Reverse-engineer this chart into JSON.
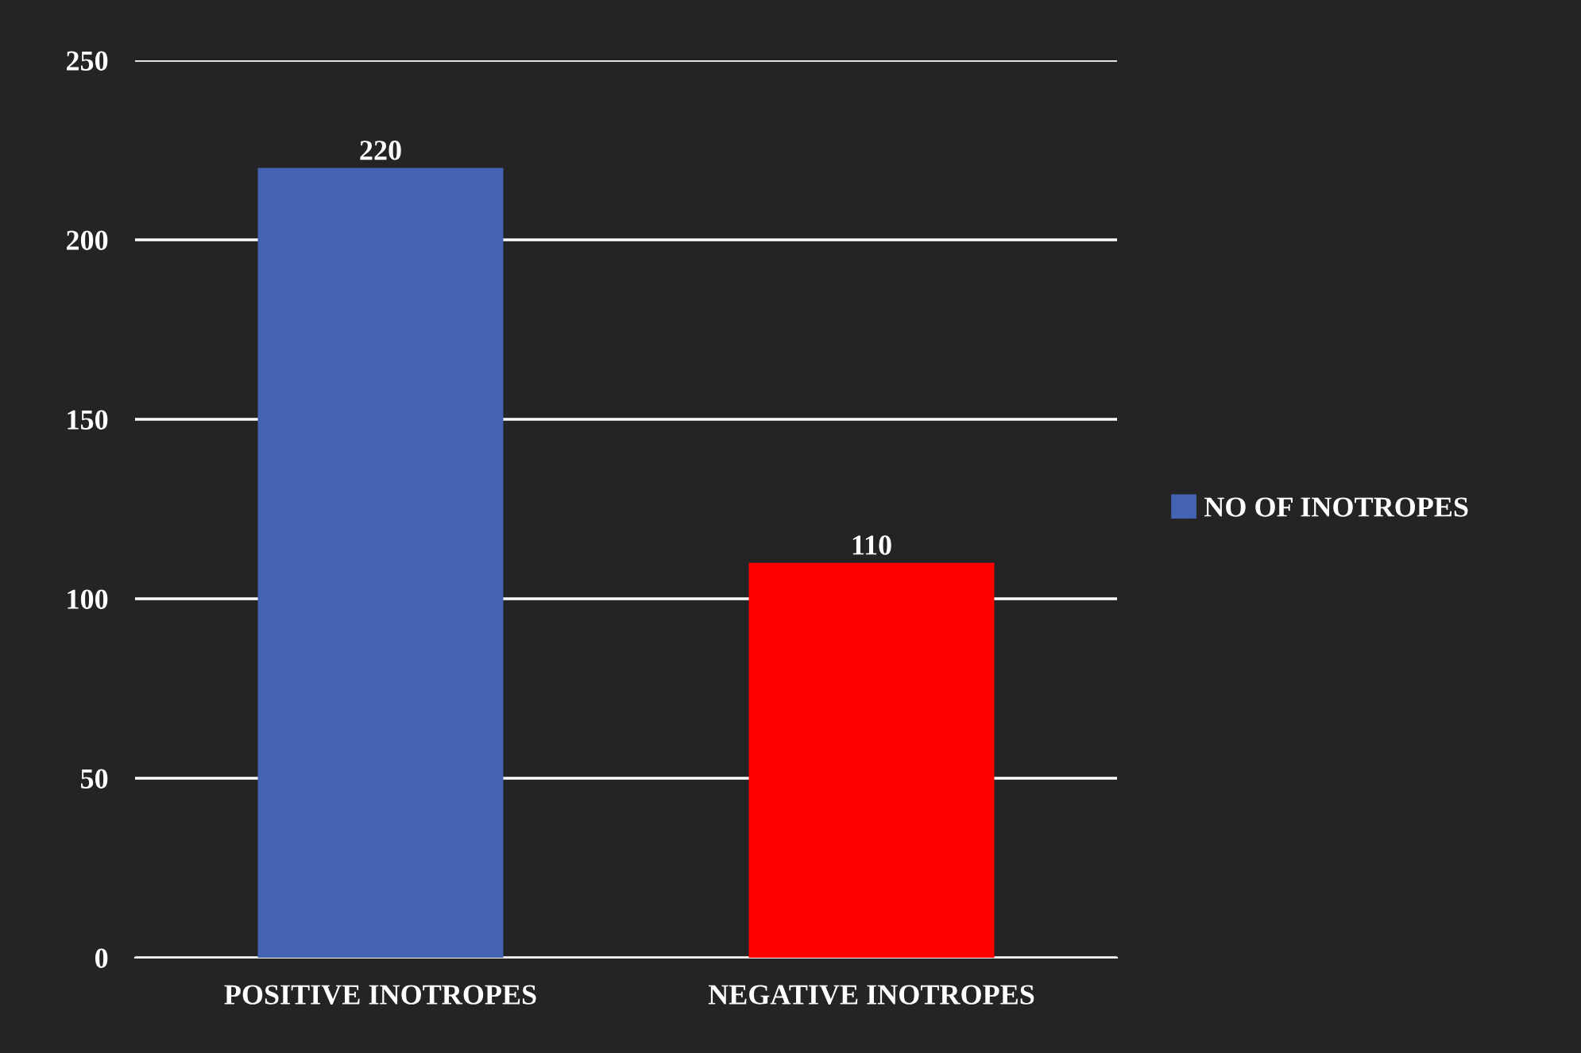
{
  "chart_data": {
    "type": "bar",
    "categories": [
      "POSITIVE INOTROPES",
      "NEGATIVE INOTROPES"
    ],
    "series": [
      {
        "name": "NO OF INOTROPES",
        "colors": [
          "#4563b3",
          "#ff0000"
        ],
        "values": [
          220,
          110
        ]
      }
    ],
    "ylim": [
      0,
      250
    ],
    "yticks": [
      0,
      50,
      100,
      150,
      200,
      250
    ],
    "grid": "y",
    "data_labels": true,
    "legend": "right"
  }
}
